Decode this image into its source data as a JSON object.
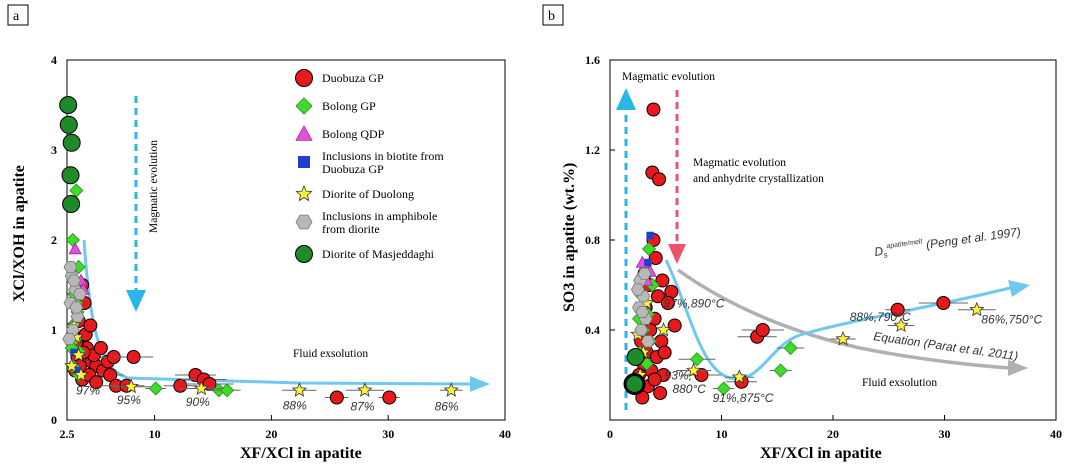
{
  "colors": {
    "duobuza": "#e8191c",
    "bolong_gp": "#3ddc2a",
    "bolong_qdp": "#e84fd8",
    "inclusion_biotite": "#1f3fd1",
    "diorite_duolong": "#fff23a",
    "inclusion_amph": "#b8b8b8",
    "masjeddaghi": "#1e8a2a",
    "evolution_arrow": "#29b6e8",
    "anhydrite_arrow": "#f0506e",
    "trend": "#6fc8f0",
    "equation": "#b0b0b0"
  },
  "chart_data": [
    {
      "type": "scatter",
      "panel_label": "a",
      "xlabel": "XF/XCl in apatite",
      "ylabel": "XCl/XOH in apatite",
      "xlim": [
        2.5,
        40
      ],
      "ylim": [
        0,
        4
      ],
      "x_ticks": [
        "2.5",
        "10",
        "20",
        "30",
        "40"
      ],
      "x_tick_values": [
        2.5,
        10,
        20,
        30,
        40
      ],
      "y_ticks": [
        "0",
        "1",
        "2",
        "3",
        "4"
      ],
      "y_tick_values": [
        0,
        1,
        2,
        3,
        4
      ],
      "legend": [
        {
          "key": "duobuza",
          "label": "Duobuza GP",
          "shape": "circle"
        },
        {
          "key": "bolong_gp",
          "label": "Bolong GP",
          "shape": "diamond"
        },
        {
          "key": "bolong_qdp",
          "label": "Bolong QDP",
          "shape": "triangle"
        },
        {
          "key": "inclusion_biotite",
          "label": [
            "Inclusions in biotite from",
            "Duobuza GP"
          ],
          "shape": "square"
        },
        {
          "key": "diorite_duolong",
          "label": "Diorite of Duolong",
          "shape": "star"
        },
        {
          "key": "inclusion_amph",
          "label": [
            "Inclusions in amphibole",
            "from diorite"
          ],
          "shape": "hexagon"
        },
        {
          "key": "masjeddaghi",
          "label": "Diorite of Masjeddaghi",
          "shape": "circle"
        }
      ],
      "annotations": {
        "evolution": "Magmatic evolution",
        "exsolution": "Fluid exsolution",
        "percents": [
          {
            "text": "97%",
            "x": 4.3,
            "y": 0.33
          },
          {
            "text": "95%",
            "x": 7.8,
            "y": 0.22
          },
          {
            "text": "90%",
            "x": 13.7,
            "y": 0.2
          },
          {
            "text": "88%",
            "x": 22.0,
            "y": 0.16
          },
          {
            "text": "87%",
            "x": 27.8,
            "y": 0.15
          },
          {
            "text": "86%",
            "x": 35.0,
            "y": 0.15
          }
        ]
      },
      "series": [
        {
          "key": "duobuza",
          "name": "Duobuza GP",
          "points": [
            [
              3.8,
              1.5
            ],
            [
              4.0,
              1.3
            ],
            [
              3.5,
              1.1
            ],
            [
              3.6,
              0.9
            ],
            [
              4.2,
              0.8
            ],
            [
              3.4,
              0.7
            ],
            [
              4.6,
              0.65
            ],
            [
              5.0,
              0.6
            ],
            [
              5.6,
              0.55
            ],
            [
              6.2,
              0.5
            ],
            [
              6.0,
              0.65
            ],
            [
              6.5,
              0.7
            ],
            [
              3.2,
              0.55
            ],
            [
              3.8,
              0.45
            ],
            [
              4.4,
              0.5
            ],
            [
              5.0,
              0.42
            ],
            [
              3.6,
              0.6
            ],
            [
              4.8,
              0.72
            ],
            [
              5.4,
              0.8
            ],
            [
              4.1,
              0.95
            ],
            [
              4.5,
              1.05
            ],
            [
              3.3,
              0.85
            ],
            [
              3.9,
              0.75
            ],
            [
              6.7,
              0.38
            ],
            [
              7.6,
              0.38
            ],
            [
              8.2,
              0.7
            ],
            [
              12.2,
              0.38
            ],
            [
              13.5,
              0.5
            ],
            [
              14.2,
              0.45
            ],
            [
              14.7,
              0.4
            ],
            [
              25.6,
              0.25
            ],
            [
              30.1,
              0.25
            ]
          ]
        },
        {
          "key": "bolong_gp",
          "name": "Bolong GP",
          "points": [
            [
              3.3,
              2.55
            ],
            [
              3.0,
              2.0
            ],
            [
              3.5,
              1.7
            ],
            [
              3.1,
              1.4
            ],
            [
              3.4,
              1.2
            ],
            [
              3.0,
              1.05
            ],
            [
              3.2,
              0.9
            ],
            [
              3.6,
              0.75
            ],
            [
              3.0,
              0.6
            ],
            [
              3.5,
              0.5
            ],
            [
              2.9,
              0.8
            ],
            [
              3.3,
              1.3
            ],
            [
              10.1,
              0.35
            ],
            [
              15.5,
              0.33
            ],
            [
              16.2,
              0.33
            ]
          ]
        },
        {
          "key": "bolong_qdp",
          "name": "Bolong QDP",
          "points": [
            [
              3.2,
              1.9
            ],
            [
              3.7,
              1.55
            ],
            [
              3.9,
              1.45
            ],
            [
              3.4,
              1.2
            ],
            [
              3.0,
              1.6
            ]
          ]
        },
        {
          "key": "inclusion_biotite",
          "name": "Inclusions in biotite",
          "points": [
            [
              3.4,
              0.55
            ],
            [
              3.1,
              0.75
            ]
          ]
        },
        {
          "key": "diorite_duolong",
          "name": "Diorite of Duolong",
          "points": [
            [
              3.3,
              0.92
            ],
            [
              3.5,
              0.72
            ],
            [
              2.9,
              0.6
            ],
            [
              3.7,
              0.5
            ],
            [
              8.0,
              0.37
            ],
            [
              14.0,
              0.35
            ],
            [
              22.4,
              0.33
            ],
            [
              28.0,
              0.33
            ],
            [
              35.4,
              0.33
            ],
            [
              3.1,
              1.05
            ]
          ]
        },
        {
          "key": "inclusion_amph",
          "name": "Inclusions in amphibole",
          "points": [
            [
              2.9,
              1.6
            ],
            [
              3.2,
              1.45
            ],
            [
              2.8,
              1.3
            ],
            [
              3.4,
              1.15
            ],
            [
              3.0,
              1.0
            ],
            [
              2.7,
              0.9
            ],
            [
              3.6,
              1.4
            ],
            [
              3.3,
              1.25
            ],
            [
              2.8,
              1.7
            ],
            [
              3.1,
              1.55
            ]
          ]
        },
        {
          "key": "masjeddaghi",
          "name": "Diorite of Masjeddaghi",
          "points": [
            [
              2.6,
              3.5
            ],
            [
              2.65,
              3.28
            ],
            [
              2.9,
              3.08
            ],
            [
              2.8,
              2.72
            ],
            [
              2.85,
              2.4
            ]
          ]
        }
      ]
    },
    {
      "type": "scatter",
      "panel_label": "b",
      "xlabel": "XF/XCl in apatite",
      "ylabel": "SO3 in apatite (wt.%)",
      "xlim": [
        0,
        40
      ],
      "ylim": [
        0,
        1.6
      ],
      "x_ticks": [
        "0",
        "10",
        "20",
        "30",
        "40"
      ],
      "x_tick_values": [
        0,
        10,
        20,
        30,
        40
      ],
      "y_ticks": [
        "0.4",
        "0.8",
        "1.2",
        "1.6"
      ],
      "y_tick_values": [
        0.4,
        0.8,
        1.2,
        1.6
      ],
      "annotations": {
        "evolution": "Magmatic evolution",
        "anhydrite_1": "Magmatic evolution",
        "anhydrite_2": "and anhydrite crystallization",
        "exsolution": "Fluid exsolution",
        "peng_prefix": "D",
        "peng_sub": "s",
        "peng_sup": "apatite/melt",
        "peng_suffix": " (Peng et al. 1997)",
        "equation": "Equation (Parat et al. 2011)",
        "labels": [
          {
            "text": "97%,890°C",
            "x": 4.8,
            "y": 0.5
          },
          {
            "text": "88%,790°C",
            "x": 21.5,
            "y": 0.44
          },
          {
            "text": "86%,750°C",
            "x": 33.3,
            "y": 0.43
          },
          {
            "text": "93%,",
            "x": 4.9,
            "y": 0.18
          },
          {
            "text": "880°C",
            "x": 5.6,
            "y": 0.12
          },
          {
            "text": "91%,875°C",
            "x": 9.2,
            "y": 0.08
          }
        ]
      },
      "series": [
        {
          "key": "duobuza",
          "name": "Duobuza GP",
          "points": [
            [
              3.9,
              1.38
            ],
            [
              3.8,
              1.1
            ],
            [
              4.4,
              1.07
            ],
            [
              3.9,
              0.8
            ],
            [
              4.1,
              0.72
            ],
            [
              3.5,
              0.6
            ],
            [
              4.3,
              0.55
            ],
            [
              3.2,
              0.5
            ],
            [
              4.0,
              0.45
            ],
            [
              3.6,
              0.4
            ],
            [
              4.6,
              0.35
            ],
            [
              3.3,
              0.3
            ],
            [
              4.2,
              0.28
            ],
            [
              3.7,
              0.22
            ],
            [
              4.8,
              0.2
            ],
            [
              3.4,
              0.15
            ],
            [
              4.5,
              0.12
            ],
            [
              2.9,
              0.1
            ],
            [
              5.5,
              0.57
            ],
            [
              5.2,
              0.52
            ],
            [
              3.1,
              0.65
            ],
            [
              4.7,
              0.62
            ],
            [
              3.0,
              0.25
            ],
            [
              2.8,
              0.35
            ],
            [
              4.0,
              0.18
            ],
            [
              13.2,
              0.37
            ],
            [
              13.7,
              0.4
            ],
            [
              25.8,
              0.49
            ],
            [
              29.9,
              0.52
            ],
            [
              11.8,
              0.17
            ],
            [
              8.2,
              0.2
            ],
            [
              5.8,
              0.42
            ],
            [
              4.9,
              0.3
            ],
            [
              2.6,
              0.2
            ]
          ]
        },
        {
          "key": "bolong_gp",
          "name": "Bolong GP",
          "points": [
            [
              3.5,
              0.76
            ],
            [
              3.2,
              0.67
            ],
            [
              3.8,
              0.6
            ],
            [
              2.9,
              0.55
            ],
            [
              3.4,
              0.47
            ],
            [
              3.0,
              0.4
            ],
            [
              3.6,
              0.35
            ],
            [
              2.7,
              0.3
            ],
            [
              3.3,
              0.25
            ],
            [
              16.2,
              0.32
            ],
            [
              15.3,
              0.22
            ],
            [
              10.2,
              0.14
            ],
            [
              7.8,
              0.27
            ],
            [
              2.6,
              0.45
            ]
          ]
        },
        {
          "key": "bolong_qdp",
          "name": "Bolong QDP",
          "points": [
            [
              2.9,
              0.7
            ],
            [
              3.3,
              0.62
            ],
            [
              2.7,
              0.58
            ],
            [
              3.6,
              0.66
            ]
          ]
        },
        {
          "key": "inclusion_biotite",
          "name": "Inclusions in biotite",
          "points": [
            [
              3.6,
              0.82
            ],
            [
              3.4,
              0.7
            ]
          ]
        },
        {
          "key": "diorite_duolong",
          "name": "Diorite of Duolong",
          "points": [
            [
              4.8,
              0.4
            ],
            [
              3.0,
              0.3
            ],
            [
              2.7,
              0.2
            ],
            [
              7.5,
              0.22
            ],
            [
              11.6,
              0.19
            ],
            [
              20.9,
              0.36
            ],
            [
              26.1,
              0.42
            ],
            [
              32.9,
              0.49
            ],
            [
              3.3,
              0.52
            ],
            [
              2.5,
              0.38
            ]
          ]
        },
        {
          "key": "inclusion_amph",
          "name": "Inclusions in amphibole",
          "points": [
            [
              2.7,
              0.62
            ],
            [
              3.0,
              0.55
            ],
            [
              2.6,
              0.5
            ],
            [
              3.2,
              0.45
            ],
            [
              2.8,
              0.4
            ],
            [
              3.4,
              0.35
            ],
            [
              2.5,
              0.58
            ],
            [
              2.9,
              0.48
            ],
            [
              3.1,
              0.65
            ]
          ]
        },
        {
          "key": "masjeddaghi",
          "name": "Diorite of Masjeddaghi",
          "points": [
            [
              2.2,
              0.16
            ],
            [
              2.3,
              0.28
            ]
          ]
        }
      ]
    }
  ]
}
